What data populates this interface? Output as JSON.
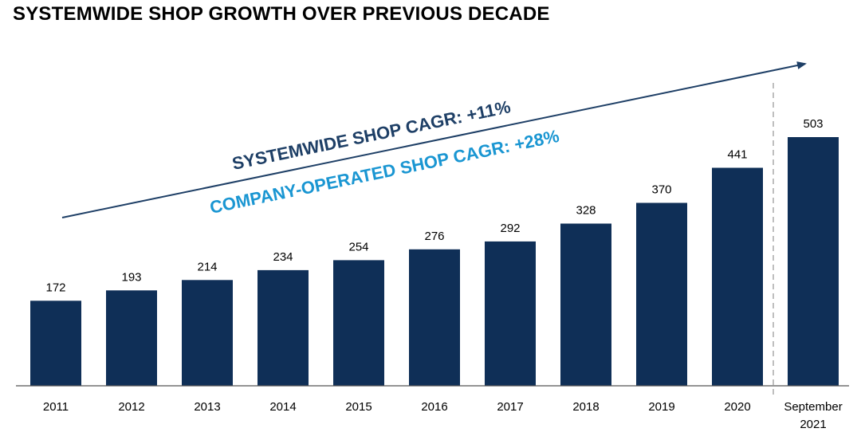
{
  "chart_data": {
    "type": "bar",
    "title": "SYSTEMWIDE SHOP GROWTH OVER PREVIOUS DECADE",
    "categories": [
      "2011",
      "2012",
      "2013",
      "2014",
      "2015",
      "2016",
      "2017",
      "2018",
      "2019",
      "2020",
      "September 2021"
    ],
    "category_lines": [
      [
        "2011"
      ],
      [
        "2012"
      ],
      [
        "2013"
      ],
      [
        "2014"
      ],
      [
        "2015"
      ],
      [
        "2016"
      ],
      [
        "2017"
      ],
      [
        "2018"
      ],
      [
        "2019"
      ],
      [
        "2020"
      ],
      [
        "September",
        "2021"
      ]
    ],
    "values": [
      172,
      193,
      214,
      234,
      254,
      276,
      292,
      328,
      370,
      441,
      503
    ],
    "ylim": [
      0,
      503
    ],
    "xlabel": "",
    "ylabel": "",
    "grid": false,
    "bar_color": "#0f2f57",
    "annotations": [
      {
        "text": "SYSTEMWIDE SHOP CAGR: +11%",
        "color": "#1e3f66"
      },
      {
        "text": "COMPANY-OPERATED SHOP CAGR: +28%",
        "color": "#1a96d2"
      }
    ]
  }
}
